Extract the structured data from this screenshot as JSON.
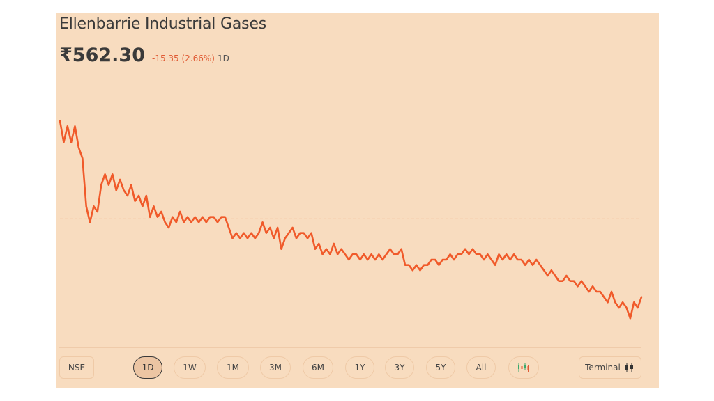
{
  "stock": {
    "name": "Ellenbarrie Industrial Gases",
    "price": "₹562.30",
    "change": "-15.35 (2.66%)",
    "period": "1D"
  },
  "colors": {
    "background": "#f8dcbf",
    "line": "#f05a2a",
    "baseline": "#f0a57a",
    "text": "#3a3a3a"
  },
  "controls": {
    "exchange": "NSE",
    "ranges": [
      "1D",
      "1W",
      "1M",
      "3M",
      "6M",
      "1Y",
      "3Y",
      "5Y",
      "All"
    ],
    "active_range": "1D",
    "chart_type_icon": "candlestick-icon",
    "terminal_label": "Terminal",
    "terminal_icon": "candlestick-icon"
  },
  "chart_data": {
    "type": "line",
    "title": "",
    "xlabel": "",
    "ylabel": "",
    "grid": false,
    "legend": "none",
    "previous_close": 577.65,
    "ylim": [
      555,
      600
    ],
    "values": [
      596,
      592,
      595,
      592,
      595,
      591,
      589,
      580,
      577,
      580,
      579,
      584,
      586,
      584,
      586,
      583,
      585,
      583,
      582,
      584,
      581,
      582,
      580,
      582,
      578,
      580,
      578,
      579,
      577,
      576,
      578,
      577,
      579,
      577,
      578,
      577,
      578,
      577,
      578,
      577,
      578,
      578,
      577,
      578,
      578,
      576,
      574,
      575,
      574,
      575,
      574,
      575,
      574,
      575,
      577,
      575,
      576,
      574,
      576,
      572,
      574,
      575,
      576,
      574,
      575,
      575,
      574,
      575,
      572,
      573,
      571,
      572,
      571,
      573,
      571,
      572,
      571,
      570,
      571,
      571,
      570,
      571,
      570,
      571,
      570,
      571,
      570,
      571,
      572,
      571,
      571,
      572,
      569,
      569,
      568,
      569,
      568,
      569,
      569,
      570,
      570,
      569,
      570,
      570,
      571,
      570,
      571,
      571,
      572,
      571,
      572,
      571,
      571,
      570,
      571,
      570,
      569,
      571,
      570,
      571,
      570,
      571,
      570,
      570,
      569,
      570,
      569,
      570,
      569,
      568,
      567,
      568,
      567,
      566,
      566,
      567,
      566,
      566,
      565,
      566,
      565,
      564,
      565,
      564,
      564,
      563,
      562,
      564,
      562,
      561,
      562,
      561,
      559,
      562,
      561,
      563
    ]
  }
}
